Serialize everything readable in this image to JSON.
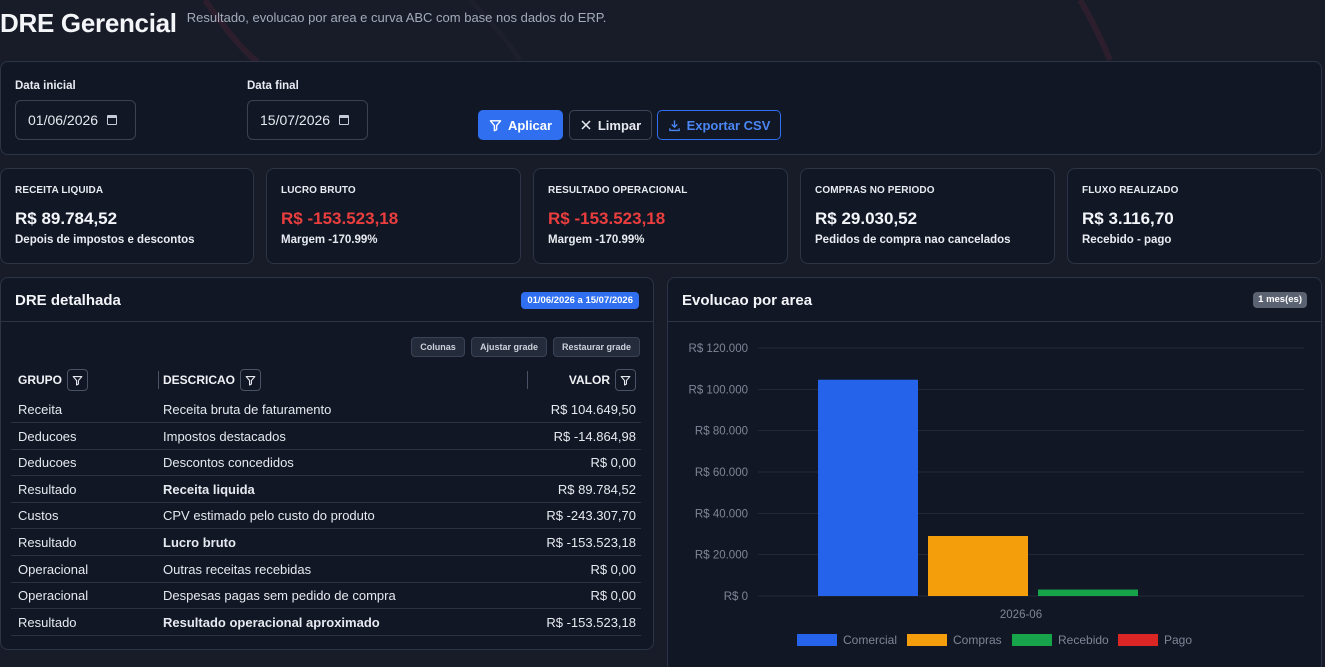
{
  "header": {
    "title": "DRE Gerencial",
    "subtitle": "Resultado, evolucao por area e curva ABC com base nos dados do ERP."
  },
  "filters": {
    "start_label": "Data inicial",
    "start_value": "01/06/2026",
    "end_label": "Data final",
    "end_value": "15/07/2026",
    "apply_label": "Aplicar",
    "clear_label": "Limpar",
    "export_label": "Exportar CSV"
  },
  "kpis": [
    {
      "label": "RECEITA LIQUIDA",
      "value": "R$ 89.784,52",
      "note": "Depois de impostos e descontos",
      "negative": false
    },
    {
      "label": "LUCRO BRUTO",
      "value": "R$ -153.523,18",
      "note": "Margem -170.99%",
      "negative": true
    },
    {
      "label": "RESULTADO OPERACIONAL",
      "value": "R$ -153.523,18",
      "note": "Margem -170.99%",
      "negative": true
    },
    {
      "label": "COMPRAS NO PERIODO",
      "value": "R$ 29.030,52",
      "note": "Pedidos de compra nao cancelados",
      "negative": false
    },
    {
      "label": "FLUXO REALIZADO",
      "value": "R$ 3.116,70",
      "note": "Recebido - pago",
      "negative": false
    }
  ],
  "dre": {
    "title": "DRE detalhada",
    "period_badge": "01/06/2026 a 15/07/2026",
    "grid_buttons": {
      "columns": "Colunas",
      "adjust": "Ajustar grade",
      "restore": "Restaurar grade"
    },
    "columns": {
      "group": "GRUPO",
      "description": "DESCRICAO",
      "value": "VALOR"
    },
    "rows": [
      {
        "group": "Receita",
        "description": "Receita bruta de faturamento",
        "value": "R$ 104.649,50",
        "bold": false
      },
      {
        "group": "Deducoes",
        "description": "Impostos destacados",
        "value": "R$ -14.864,98",
        "bold": false
      },
      {
        "group": "Deducoes",
        "description": "Descontos concedidos",
        "value": "R$ 0,00",
        "bold": false
      },
      {
        "group": "Resultado",
        "description": "Receita liquida",
        "value": "R$ 89.784,52",
        "bold": true
      },
      {
        "group": "Custos",
        "description": "CPV estimado pelo custo do produto",
        "value": "R$ -243.307,70",
        "bold": false
      },
      {
        "group": "Resultado",
        "description": "Lucro bruto",
        "value": "R$ -153.523,18",
        "bold": true
      },
      {
        "group": "Operacional",
        "description": "Outras receitas recebidas",
        "value": "R$ 0,00",
        "bold": false
      },
      {
        "group": "Operacional",
        "description": "Despesas pagas sem pedido de compra",
        "value": "R$ 0,00",
        "bold": false
      },
      {
        "group": "Resultado",
        "description": "Resultado operacional aproximado",
        "value": "R$ -153.523,18",
        "bold": true
      }
    ]
  },
  "chart_panel": {
    "title": "Evolucao por area",
    "badge": "1 mes(es)"
  },
  "chart_data": {
    "type": "bar",
    "title": "Evolucao por area",
    "categories": [
      "2026-06"
    ],
    "series": [
      {
        "name": "Comercial",
        "values": [
          104649.5
        ],
        "color": "#2563eb"
      },
      {
        "name": "Compras",
        "values": [
          29030.52
        ],
        "color": "#f59e0b"
      },
      {
        "name": "Recebido",
        "values": [
          3116.7
        ],
        "color": "#16a34a"
      },
      {
        "name": "Pago",
        "values": [
          0
        ],
        "color": "#dc2626"
      }
    ],
    "ylim": [
      0,
      120000
    ],
    "yticks": [
      "R$ 0",
      "R$ 20.000",
      "R$ 40.000",
      "R$ 60.000",
      "R$ 80.000",
      "R$ 100.000",
      "R$ 120.000"
    ],
    "grid": true,
    "legend": "bottom"
  }
}
